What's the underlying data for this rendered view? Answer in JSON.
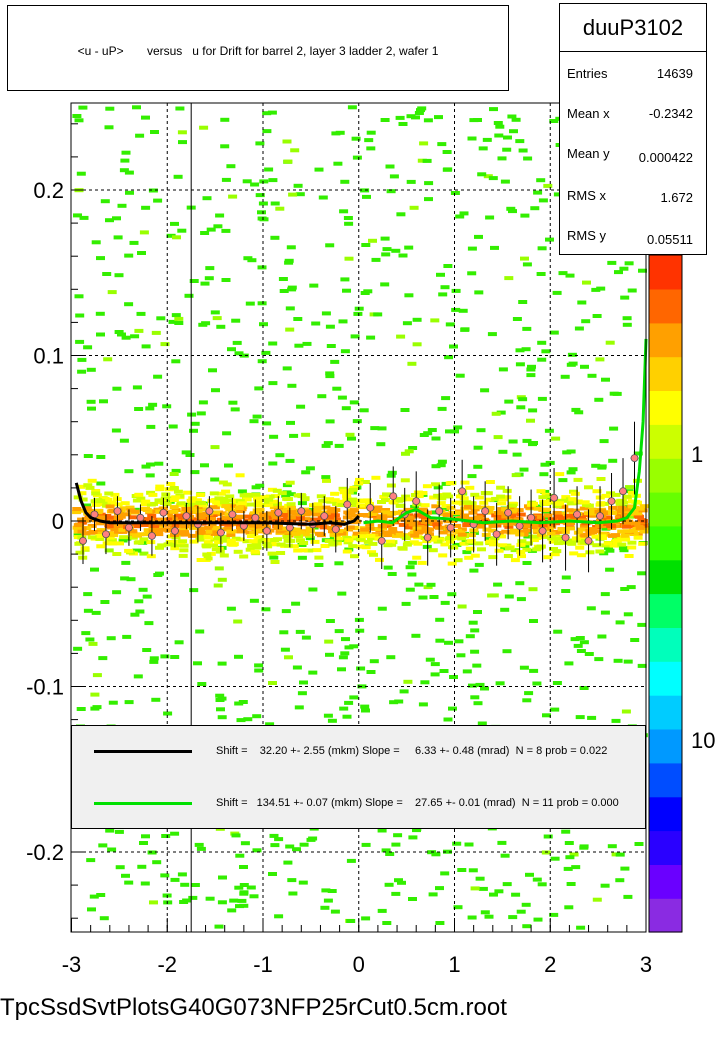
{
  "title": "<u - uP>       versus   u for Drift for barrel 2, layer 3 ladder 2, wafer 1",
  "stats": {
    "name": "duuP3102",
    "rows": [
      {
        "label": "Entries",
        "value": "14639"
      },
      {
        "label": "Mean x",
        "value": "-0.2342"
      },
      {
        "label": "Mean y",
        "value": "0.000422"
      },
      {
        "label": "RMS x",
        "value": "1.672"
      },
      {
        "label": "RMS y",
        "value": "0.05511"
      }
    ]
  },
  "legend": [
    {
      "text": "Shift =    32.20 +- 2.55 (mkm) Slope =     6.33 +- 0.48 (mrad)  N = 8 prob = 0.022",
      "color": "#000000"
    },
    {
      "text": "Shift =   134.51 +- 0.07 (mkm) Slope =    27.65 +- 0.01 (mrad)  N = 11 prob = 0.000",
      "color": "#00e000"
    }
  ],
  "footer": "TpcSsdSvtPlotsG40G073NFP25rCut0.5cm.root",
  "chart_data": {
    "type": "heatmap",
    "xlim": [
      -3,
      3
    ],
    "ylim": [
      -0.25,
      0.25
    ],
    "x_ticks": [
      "-3",
      "-2",
      "-1",
      "0",
      "1",
      "2",
      "3"
    ],
    "y_ticks": [
      "-0.2",
      "-0.1",
      "0",
      "0.1",
      "0.2"
    ],
    "grid": true,
    "colorbar_ticks": [
      "1",
      "10"
    ],
    "colorbar_colors": [
      "#8a2be2",
      "#6a00ff",
      "#2a00ff",
      "#0000ff",
      "#004dff",
      "#0099ff",
      "#00ccff",
      "#00ffff",
      "#00ffbb",
      "#00ff66",
      "#00e000",
      "#33ff00",
      "#66ff00",
      "#99ff00",
      "#ccff00",
      "#ffff00",
      "#ffd000",
      "#ffa000",
      "#ff6600",
      "#ff3300"
    ],
    "vertical_lines_x": [
      -1.75
    ],
    "fit_black": {
      "x": [
        -2.95,
        -2.9,
        -2.85,
        -2.8,
        -2.7,
        -2.6,
        -2.4,
        -2.0,
        -1.5,
        -1.0,
        -0.5,
        -0.3,
        -0.15,
        -0.05,
        0.0
      ],
      "y": [
        0.023,
        0.012,
        0.005,
        0.002,
        0.0,
        -0.001,
        -0.001,
        -0.001,
        -0.001,
        -0.001,
        -0.002,
        -0.001,
        -0.002,
        0.0,
        0.003
      ]
    },
    "fit_green": {
      "x": [
        0.05,
        0.2,
        0.35,
        0.5,
        0.6,
        0.75,
        1.0,
        1.3,
        1.6,
        1.9,
        2.2,
        2.5,
        2.7,
        2.8,
        2.88,
        2.93,
        2.97,
        3.0
      ],
      "y": [
        -0.001,
        0.0,
        -0.001,
        0.005,
        0.007,
        0.002,
        0.001,
        -0.001,
        0.0,
        -0.001,
        0.0,
        -0.001,
        0.0,
        0.002,
        0.008,
        0.03,
        0.06,
        0.11
      ]
    },
    "profile_points": {
      "x": [
        -2.88,
        -2.76,
        -2.64,
        -2.52,
        -2.4,
        -2.28,
        -2.16,
        -2.04,
        -1.92,
        -1.8,
        -1.68,
        -1.56,
        -1.44,
        -1.32,
        -1.2,
        -1.08,
        -0.96,
        -0.84,
        -0.72,
        -0.6,
        -0.48,
        -0.36,
        -0.24,
        -0.12,
        0.12,
        0.24,
        0.36,
        0.48,
        0.6,
        0.72,
        0.84,
        0.96,
        1.08,
        1.2,
        1.32,
        1.44,
        1.56,
        1.68,
        1.8,
        1.92,
        2.04,
        2.16,
        2.28,
        2.4,
        2.52,
        2.64,
        2.76,
        2.88
      ],
      "y": [
        -0.012,
        0.004,
        -0.008,
        0.006,
        -0.004,
        0.002,
        -0.009,
        0.005,
        -0.006,
        0.003,
        -0.002,
        0.006,
        -0.007,
        0.004,
        -0.003,
        0.002,
        -0.006,
        0.005,
        -0.004,
        0.006,
        -0.002,
        0.003,
        -0.005,
        0.01,
        0.008,
        -0.012,
        0.015,
        0.004,
        0.012,
        -0.01,
        0.006,
        -0.004,
        0.018,
        -0.002,
        0.006,
        -0.008,
        0.005,
        -0.003,
        0.002,
        -0.006,
        0.014,
        -0.01,
        0.004,
        -0.012,
        0.003,
        0.012,
        0.018,
        0.038
      ],
      "err": [
        0.014,
        0.01,
        0.012,
        0.009,
        0.011,
        0.008,
        0.012,
        0.009,
        0.01,
        0.008,
        0.011,
        0.009,
        0.012,
        0.01,
        0.009,
        0.011,
        0.012,
        0.01,
        0.012,
        0.011,
        0.013,
        0.012,
        0.014,
        0.016,
        0.015,
        0.017,
        0.018,
        0.016,
        0.018,
        0.017,
        0.016,
        0.018,
        0.019,
        0.017,
        0.018,
        0.019,
        0.016,
        0.018,
        0.017,
        0.019,
        0.018,
        0.02,
        0.017,
        0.019,
        0.018,
        0.017,
        0.02,
        0.022
      ]
    }
  }
}
